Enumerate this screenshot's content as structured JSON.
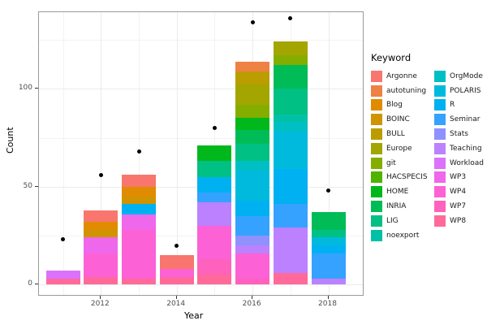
{
  "chart_data": {
    "type": "bar",
    "stacked": true,
    "title": "",
    "xlabel": "Year",
    "ylabel": "Count",
    "x_ticks": [
      "2012",
      "2014",
      "2016",
      "2018"
    ],
    "y_ticks": [
      0,
      50,
      100
    ],
    "y_minor": [
      25,
      75,
      125
    ],
    "x_minor_years": [
      2011,
      2013,
      2015,
      2017
    ],
    "ylim": [
      0,
      139
    ],
    "grid": "on",
    "legend_position": "right",
    "keywords": [
      {
        "name": "Argonne",
        "color": "#F8766D"
      },
      {
        "name": "autotuning",
        "color": "#EF8145"
      },
      {
        "name": "Blog",
        "color": "#E08B00"
      },
      {
        "name": "BOINC",
        "color": "#CF9400"
      },
      {
        "name": "BULL",
        "color": "#BB9D00"
      },
      {
        "name": "Europe",
        "color": "#A3A500"
      },
      {
        "name": "git",
        "color": "#84AD00"
      },
      {
        "name": "HACSPECIS",
        "color": "#4FB300"
      },
      {
        "name": "HOME",
        "color": "#00B81B"
      },
      {
        "name": "INRIA",
        "color": "#00BC56"
      },
      {
        "name": "LIG",
        "color": "#00C083"
      },
      {
        "name": "noexport",
        "color": "#00C1A7"
      },
      {
        "name": "OrgMode",
        "color": "#00BFC4"
      },
      {
        "name": "POLARIS",
        "color": "#00BADE"
      },
      {
        "name": "R",
        "color": "#00B1F2"
      },
      {
        "name": "Seminar",
        "color": "#35A2FF"
      },
      {
        "name": "Stats",
        "color": "#8F91FF"
      },
      {
        "name": "Teaching",
        "color": "#BC81FF"
      },
      {
        "name": "Workload",
        "color": "#DB72FB"
      },
      {
        "name": "WP3",
        "color": "#EF67EB"
      },
      {
        "name": "WP4",
        "color": "#FC61D5"
      },
      {
        "name": "WP7",
        "color": "#FF62BC"
      },
      {
        "name": "WP8",
        "color": "#FF6A9A"
      }
    ],
    "bars": [
      {
        "year": 2011,
        "total": 7,
        "segments": [
          {
            "keyword": "Workload",
            "value": 4
          },
          {
            "keyword": "WP8",
            "value": 3
          }
        ]
      },
      {
        "year": 2012,
        "total": 38,
        "segments": [
          {
            "keyword": "Argonne",
            "value": 6
          },
          {
            "keyword": "Blog",
            "value": 4
          },
          {
            "keyword": "BOINC",
            "value": 4
          },
          {
            "keyword": "WP3",
            "value": 8
          },
          {
            "keyword": "WP4",
            "value": 12
          },
          {
            "keyword": "WP8",
            "value": 4
          }
        ]
      },
      {
        "year": 2013,
        "total": 56,
        "segments": [
          {
            "keyword": "Argonne",
            "value": 6
          },
          {
            "keyword": "Blog",
            "value": 5
          },
          {
            "keyword": "BOINC",
            "value": 4
          },
          {
            "keyword": "R",
            "value": 5
          },
          {
            "keyword": "WP3",
            "value": 8
          },
          {
            "keyword": "WP4",
            "value": 25
          },
          {
            "keyword": "WP8",
            "value": 3
          }
        ]
      },
      {
        "year": 2014,
        "total": 15,
        "segments": [
          {
            "keyword": "Argonne",
            "value": 7
          },
          {
            "keyword": "WP4",
            "value": 4
          },
          {
            "keyword": "WP8",
            "value": 4
          }
        ]
      },
      {
        "year": 2015,
        "total": 71,
        "segments": [
          {
            "keyword": "HOME",
            "value": 8
          },
          {
            "keyword": "LIG",
            "value": 8
          },
          {
            "keyword": "R",
            "value": 8
          },
          {
            "keyword": "Seminar",
            "value": 5
          },
          {
            "keyword": "Teaching",
            "value": 12
          },
          {
            "keyword": "WP4",
            "value": 17
          },
          {
            "keyword": "WP7",
            "value": 8
          },
          {
            "keyword": "WP8",
            "value": 5
          }
        ]
      },
      {
        "year": 2016,
        "total": 114,
        "segments": [
          {
            "keyword": "autotuning",
            "value": 5
          },
          {
            "keyword": "BULL",
            "value": 7
          },
          {
            "keyword": "Europe",
            "value": 10
          },
          {
            "keyword": "git",
            "value": 7
          },
          {
            "keyword": "HOME",
            "value": 6
          },
          {
            "keyword": "INRIA",
            "value": 7
          },
          {
            "keyword": "LIG",
            "value": 9
          },
          {
            "keyword": "OrgMode",
            "value": 5
          },
          {
            "keyword": "POLARIS",
            "value": 15
          },
          {
            "keyword": "R",
            "value": 8
          },
          {
            "keyword": "Seminar",
            "value": 10
          },
          {
            "keyword": "Stats",
            "value": 5
          },
          {
            "keyword": "Teaching",
            "value": 4
          },
          {
            "keyword": "WP4",
            "value": 13
          },
          {
            "keyword": "WP7",
            "value": 3
          }
        ]
      },
      {
        "year": 2017,
        "total": 124,
        "segments": [
          {
            "keyword": "Europe",
            "value": 7
          },
          {
            "keyword": "git",
            "value": 5
          },
          {
            "keyword": "INRIA",
            "value": 12
          },
          {
            "keyword": "LIG",
            "value": 13
          },
          {
            "keyword": "noexport",
            "value": 4
          },
          {
            "keyword": "OrgMode",
            "value": 5
          },
          {
            "keyword": "POLARIS",
            "value": 19
          },
          {
            "keyword": "R",
            "value": 18
          },
          {
            "keyword": "Seminar",
            "value": 12
          },
          {
            "keyword": "Teaching",
            "value": 23
          },
          {
            "keyword": "WP8",
            "value": 6
          }
        ]
      },
      {
        "year": 2018,
        "total": 37,
        "segments": [
          {
            "keyword": "INRIA",
            "value": 9
          },
          {
            "keyword": "LIG",
            "value": 4
          },
          {
            "keyword": "POLARIS",
            "value": 4
          },
          {
            "keyword": "R",
            "value": 4
          },
          {
            "keyword": "Seminar",
            "value": 13
          },
          {
            "keyword": "Teaching",
            "value": 3
          }
        ]
      }
    ],
    "points": [
      {
        "year": 2011,
        "value": 23
      },
      {
        "year": 2012,
        "value": 56
      },
      {
        "year": 2013,
        "value": 68
      },
      {
        "year": 2014,
        "value": 20
      },
      {
        "year": 2015,
        "value": 80
      },
      {
        "year": 2016,
        "value": 134
      },
      {
        "year": 2017,
        "value": 136
      },
      {
        "year": 2018,
        "value": 48
      }
    ]
  },
  "legend": {
    "title": "Keyword",
    "column1": [
      "Argonne",
      "autotuning",
      "Blog",
      "BOINC",
      "BULL",
      "Europe",
      "git",
      "HACSPECIS",
      "HOME",
      "INRIA",
      "LIG",
      "noexport"
    ],
    "column2": [
      "OrgMode",
      "POLARIS",
      "R",
      "Seminar",
      "Stats",
      "Teaching",
      "Workload",
      "WP3",
      "WP4",
      "WP7",
      "WP8"
    ]
  }
}
